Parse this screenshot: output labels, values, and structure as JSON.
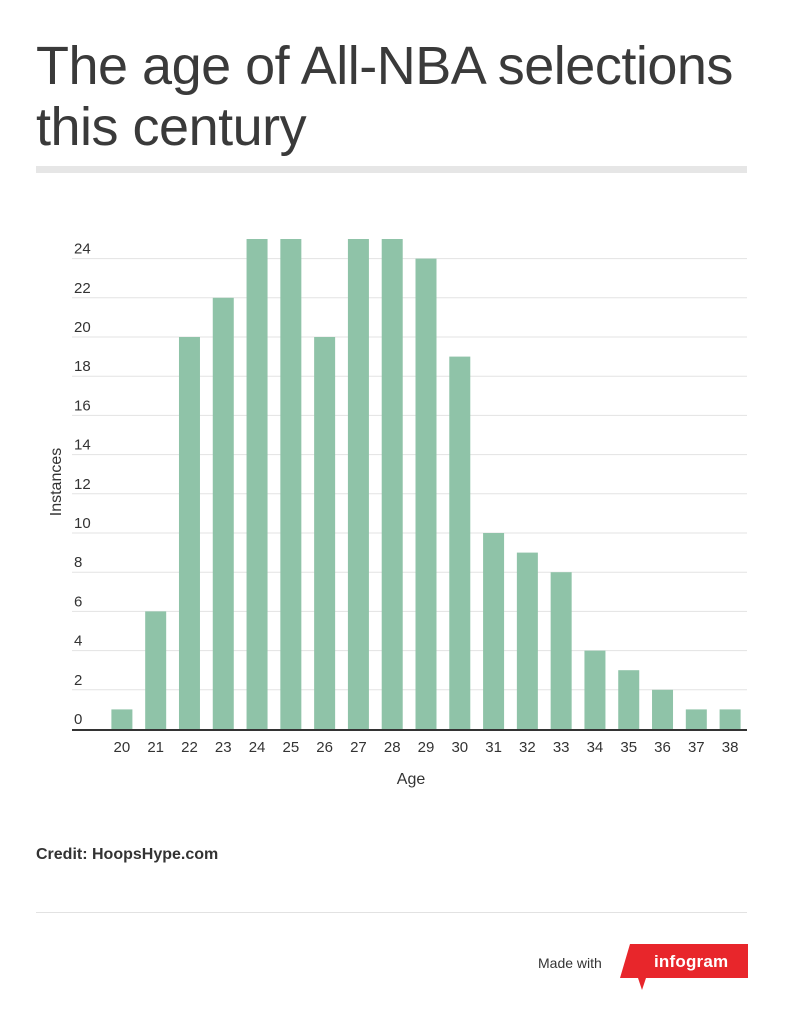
{
  "header": {
    "title": "The age of All-NBA selections this century"
  },
  "credit": "Credit: HoopsHype.com",
  "footer": {
    "made_with": "Made with",
    "brand": "infogram",
    "brand_color": "#e8262b"
  },
  "chart_data": {
    "type": "bar",
    "title": "",
    "xlabel": "Age",
    "ylabel": "Instances",
    "categories": [
      "20",
      "21",
      "22",
      "23",
      "24",
      "25",
      "26",
      "27",
      "28",
      "29",
      "30",
      "31",
      "32",
      "33",
      "34",
      "35",
      "36",
      "37",
      "38"
    ],
    "values": [
      1,
      6,
      20,
      22,
      25,
      25,
      20,
      25,
      25,
      24,
      19,
      10,
      9,
      8,
      4,
      3,
      2,
      1,
      1
    ],
    "ylim": [
      0,
      24
    ],
    "yticks": [
      0,
      2,
      4,
      6,
      8,
      10,
      12,
      14,
      16,
      18,
      20,
      22,
      24
    ],
    "grid": true,
    "bar_color": "#8fc3a8",
    "legend": "none"
  }
}
